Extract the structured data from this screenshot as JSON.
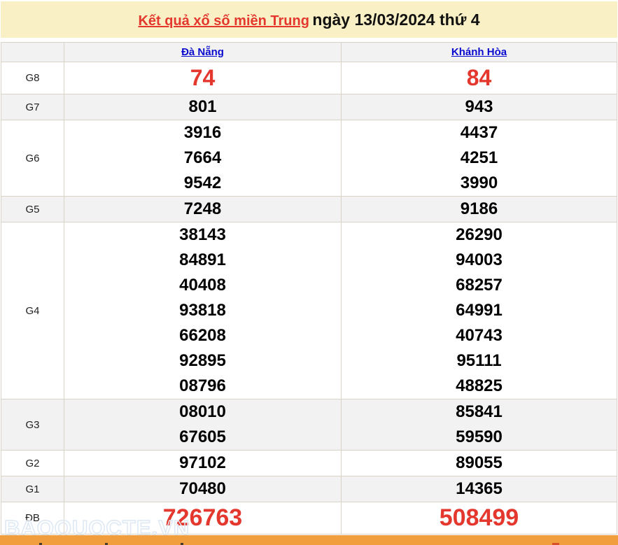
{
  "banner": {
    "title_link": "Kết quả xổ số miền Trung",
    "title_rest": "ngày 13/03/2024 thứ 4"
  },
  "table": {
    "provinces": [
      "Đà Nẵng",
      "Khánh Hòa"
    ],
    "rows": [
      {
        "label": "G8",
        "highlight": "g8",
        "values": [
          [
            "74"
          ],
          [
            "84"
          ]
        ]
      },
      {
        "label": "G7",
        "values": [
          [
            "801"
          ],
          [
            "943"
          ]
        ]
      },
      {
        "label": "G6",
        "values": [
          [
            "3916",
            "7664",
            "9542"
          ],
          [
            "4437",
            "4251",
            "3990"
          ]
        ]
      },
      {
        "label": "G5",
        "values": [
          [
            "7248"
          ],
          [
            "9186"
          ]
        ]
      },
      {
        "label": "G4",
        "values": [
          [
            "38143",
            "84891",
            "40408",
            "93818",
            "66208",
            "92895",
            "08796"
          ],
          [
            "26290",
            "94003",
            "68257",
            "64991",
            "40743",
            "95111",
            "48825"
          ]
        ]
      },
      {
        "label": "G3",
        "values": [
          [
            "08010",
            "67605"
          ],
          [
            "85841",
            "59590"
          ]
        ]
      },
      {
        "label": "G2",
        "values": [
          [
            "97102"
          ],
          [
            "89055"
          ]
        ]
      },
      {
        "label": "G1",
        "values": [
          [
            "70480"
          ],
          [
            "14365"
          ]
        ]
      },
      {
        "label": "ĐB",
        "highlight": "db",
        "values": [
          [
            "726763"
          ],
          [
            "508499"
          ]
        ]
      }
    ]
  },
  "watermark": "BAOQUOCTE.VN",
  "colors": {
    "banner_bg": "#faf0c5",
    "highlight_red": "#e4372e",
    "link_blue": "#0b0bd0",
    "stripe_gray": "#f2f2f2",
    "border": "#d9d2c9",
    "bottom_bar_orange": "#f19f3e"
  }
}
